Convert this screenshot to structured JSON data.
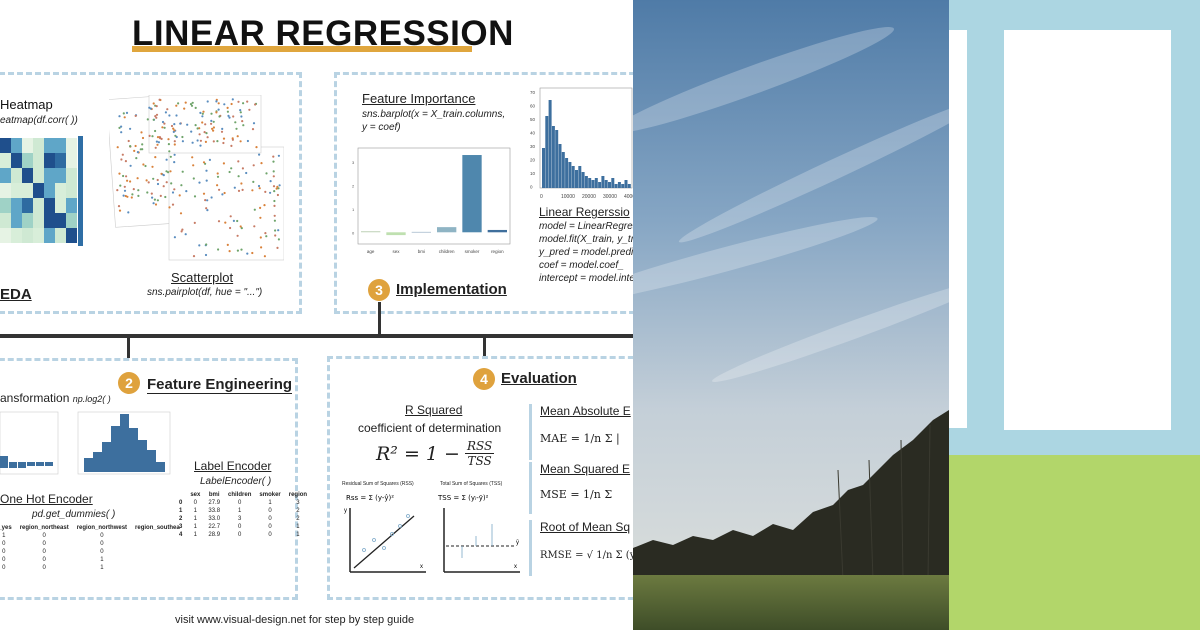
{
  "title": "LINEAR REGRESSION",
  "eda": {
    "label": "EDA",
    "heatmap_title": "Heatmap",
    "heatmap_code": "eatmap(df.corr( ))",
    "scatter_title": "Scatterplot",
    "scatter_code": "sns.pairplot(df, hue = \"...\")"
  },
  "implementation": {
    "step": "3",
    "label": "Implementation",
    "feature_importance_title": "Feature Importance",
    "feature_importance_code": "sns.barplot(x = X_train.columns,\ny = coef)",
    "fi_categories": [
      "age",
      "sex",
      "bmi",
      "children",
      "smoker",
      "region"
    ],
    "fi_values": [
      0.05,
      -0.12,
      0.02,
      0.22,
      3.3,
      0.1
    ],
    "lr_title": "Linear Regerssio",
    "lr_code": [
      "model = LinearRegress",
      "model.fit(X_train, y_tr",
      "y_pred = model.predic",
      "coef = model.coef_",
      "intercept = model.inte"
    ]
  },
  "feature_engineering": {
    "step": "2",
    "label": "Feature Engineering",
    "transform_title": "ansformation",
    "transform_code": "np.log2( )",
    "label_encoder_title": "Label Encoder",
    "label_encoder_code": "LabelEncoder( )",
    "one_hot_title": "One Hot Encoder",
    "one_hot_code": "pd.get_dummies( )",
    "le_headers": [
      "sex",
      "bmi",
      "children",
      "smoker",
      "region"
    ],
    "le_rows": [
      [
        "0",
        "27.9",
        "0",
        "1",
        "3"
      ],
      [
        "1",
        "33.8",
        "1",
        "0",
        "2"
      ],
      [
        "1",
        "33.0",
        "3",
        "0",
        "2"
      ],
      [
        "1",
        "22.7",
        "0",
        "0",
        "1"
      ],
      [
        "1",
        "28.9",
        "0",
        "0",
        "1"
      ]
    ],
    "oh_headers": [
      "r_yes",
      "region_northeast",
      "region_northwest",
      "region_southea"
    ],
    "oh_rows": [
      [
        "1",
        "0",
        "0",
        ""
      ],
      [
        "0",
        "0",
        "0",
        ""
      ],
      [
        "0",
        "0",
        "0",
        ""
      ],
      [
        "0",
        "0",
        "1",
        ""
      ],
      [
        "0",
        "0",
        "1",
        ""
      ]
    ]
  },
  "evaluation": {
    "step": "4",
    "label": "Evaluation",
    "r2_title": "R Squared",
    "r2_subtitle": "coefficient of determination",
    "r2_formula_left": "R² = 1 −",
    "r2_num": "RSS",
    "r2_den": "TSS",
    "rss_caption": "Residual Sum of Squares (RSS)",
    "tss_caption": "Total Sum of Squares (TSS)",
    "mae_title": "Mean Absolute E",
    "mae_formula": "MAE = 1/n Σ |",
    "mse_title": "Mean Squared E",
    "mse_formula": "MSE = 1/n Σ",
    "rmse_title": "Root of Mean Sq",
    "rmse_formula": "RMSE = √ 1/n Σ (y"
  },
  "footer": "visit www.visual-design.net for step by step guide"
}
